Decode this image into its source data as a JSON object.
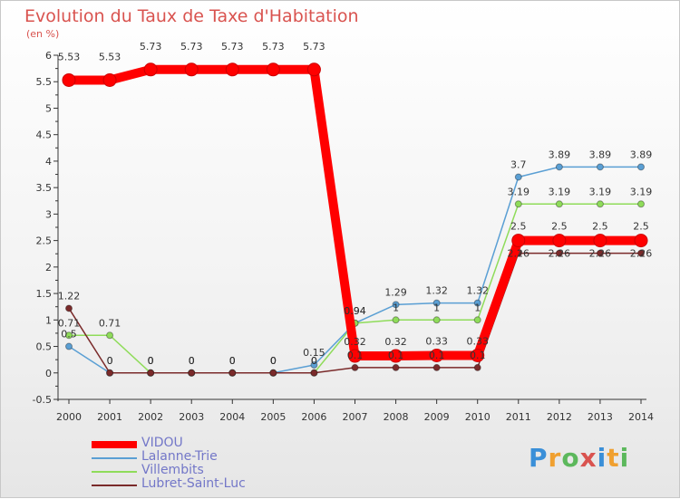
{
  "chart_data": {
    "type": "line",
    "title": "Evolution du Taux de Taxe d'Habitation",
    "subtitle": "(en %)",
    "xlabel": "",
    "ylabel": "",
    "ylim": [
      -0.5,
      6
    ],
    "yticks": [
      "-0.5",
      "0",
      "0.5",
      "1",
      "1.5",
      "2",
      "2.5",
      "3",
      "3.5",
      "4",
      "4.5",
      "5",
      "5.5",
      "6"
    ],
    "x": [
      "2000",
      "2001",
      "2002",
      "2003",
      "2004",
      "2005",
      "2006",
      "2007",
      "2008",
      "2009",
      "2010",
      "2011",
      "2012",
      "2013",
      "2014"
    ],
    "series": [
      {
        "name": "VIDOU",
        "color": "#ff0000",
        "values": [
          5.53,
          5.53,
          5.73,
          5.73,
          5.73,
          5.73,
          5.73,
          0.32,
          0.32,
          0.33,
          0.33,
          2.5,
          2.5,
          2.5,
          2.5
        ],
        "labels": [
          "5.53",
          "5.53",
          "5.73",
          "5.73",
          "5.73",
          "5.73",
          "5.73",
          "0.32",
          "0.32",
          "0.33",
          "0.33",
          "2.5",
          "2.5",
          "2.5",
          "2.5"
        ]
      },
      {
        "name": "Lalanne-Trie",
        "color": "#5a9fd4",
        "values": [
          0.5,
          0,
          0,
          0,
          0,
          0,
          0.15,
          0.94,
          1.29,
          1.32,
          1.32,
          3.7,
          3.89,
          3.89,
          3.89
        ],
        "labels": [
          "0.5",
          "0",
          "0",
          "0",
          "0",
          "0",
          "0.15",
          "0.94",
          "1.29",
          "1.32",
          "1.32",
          "3.7",
          "3.89",
          "3.89",
          "3.89"
        ]
      },
      {
        "name": "Villembits",
        "color": "#8fdc5a",
        "values": [
          0.71,
          0.71,
          0,
          0,
          0,
          0,
          0,
          0.94,
          1,
          1,
          1,
          3.19,
          3.19,
          3.19,
          3.19
        ],
        "labels": [
          "0.71",
          "0.71",
          "0",
          "0",
          "0",
          "0",
          "0",
          "0.94",
          "1",
          "1",
          "1",
          "3.19",
          "3.19",
          "3.19",
          "3.19"
        ]
      },
      {
        "name": "Lubret-Saint-Luc",
        "color": "#7a2a2a",
        "values": [
          1.22,
          0,
          0,
          0,
          0,
          0,
          0,
          0.1,
          0.1,
          0.1,
          0.1,
          2.26,
          2.26,
          2.26,
          2.26
        ],
        "labels": [
          "1.22",
          "0",
          "0",
          "0",
          "0",
          "0",
          "0",
          "0.1",
          "0.1",
          "0.1",
          "0.1",
          "2.26",
          "2.26",
          "2.26",
          "2.26"
        ]
      }
    ]
  },
  "logo": {
    "letters": [
      "P",
      "r",
      "o",
      "x",
      "i",
      "t",
      "i"
    ],
    "colors": [
      "#3a8fd8",
      "#f0a030",
      "#5cb85c",
      "#d9534f",
      "#3a8fd8",
      "#f0a030",
      "#5cb85c"
    ]
  }
}
